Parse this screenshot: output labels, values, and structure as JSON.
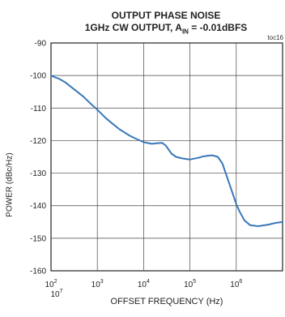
{
  "chart_data": {
    "type": "line",
    "title_line1": "OUTPUT PHASE NOISE",
    "title_line2_prefix": "1GHz CW OUTPUT, A",
    "title_line2_sub": "IN",
    "title_line2_suffix": " = -0.01dBFS",
    "tag": "toc16",
    "ylabel": "POWER (dBc/Hz)",
    "xlabel": "OFFSET FREQUENCY (Hz)",
    "xscale": "log",
    "xlim": [
      100,
      10000000
    ],
    "ylim": [
      -160,
      -90
    ],
    "x_ticks": [
      {
        "exp": 2,
        "label_base": "10",
        "label_exp": "2"
      },
      {
        "exp": 3,
        "label_base": "10",
        "label_exp": "3"
      },
      {
        "exp": 4,
        "label_base": "10",
        "label_exp": "4"
      },
      {
        "exp": 5,
        "label_base": "10",
        "label_exp": "5"
      },
      {
        "exp": 6,
        "label_base": "10",
        "label_exp": "6"
      },
      {
        "exp": 7,
        "label_base": "10",
        "label_exp": "7"
      }
    ],
    "y_ticks": [
      -90,
      -100,
      -110,
      -120,
      -130,
      -140,
      -150,
      -160
    ],
    "y_tick_labels": [
      "-90",
      "-100",
      "-110",
      "-120",
      "-130",
      "-140",
      "-150",
      "-160"
    ],
    "grid": true,
    "series_color": "#3a78b8",
    "series": [
      {
        "x": [
          100,
          120,
          150,
          200,
          300,
          500,
          700,
          1000,
          1500,
          2000,
          3000,
          5000,
          7000,
          10000,
          15000,
          20000,
          25000,
          30000,
          40000,
          50000,
          70000,
          100000,
          150000,
          200000,
          300000,
          400000,
          500000,
          700000,
          1000000,
          1200000,
          1500000,
          2000000,
          3000000,
          5000000,
          7000000,
          10000000
        ],
        "y": [
          -100,
          -100.5,
          -101,
          -102,
          -104,
          -106.5,
          -108.5,
          -110.5,
          -113,
          -114.5,
          -116.5,
          -118.5,
          -119.5,
          -120.5,
          -121,
          -120.8,
          -120.7,
          -121.5,
          -124,
          -125,
          -125.5,
          -125.8,
          -125.3,
          -124.8,
          -124.5,
          -125,
          -127,
          -133,
          -139.5,
          -142,
          -144.5,
          -146,
          -146.3,
          -145.8,
          -145.3,
          -145
        ]
      }
    ]
  }
}
